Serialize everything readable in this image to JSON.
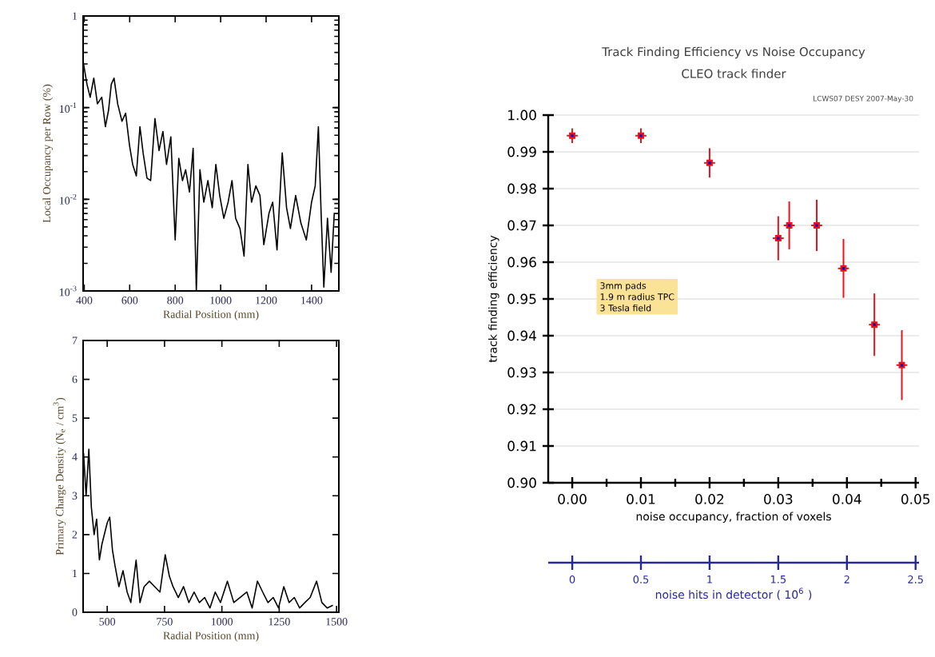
{
  "chart_data": [
    {
      "type": "line",
      "xlabel": "Radial Position (mm)",
      "ylabel": "Local Occupancy per Row (%)",
      "log": "y",
      "color": "#000000",
      "xlim": [
        395,
        1520
      ],
      "ylim": [
        0.001,
        1
      ],
      "xticks": [
        400,
        600,
        800,
        1000,
        1200,
        1400
      ],
      "yticks": [
        {
          "value": 0.001,
          "label": "10$^{-3}$"
        },
        {
          "value": 0.01,
          "label": "10$^{-2}$"
        },
        {
          "value": 0.1,
          "label": "10$^{-1}$"
        },
        1
      ],
      "x": [
        395,
        412,
        426,
        442,
        458,
        477,
        493,
        507,
        519,
        531,
        547,
        566,
        582,
        599,
        613,
        629,
        645,
        659,
        676,
        692,
        711,
        729,
        746,
        762,
        781,
        800,
        816,
        832,
        846,
        863,
        879,
        893,
        909,
        926,
        944,
        963,
        979,
        996,
        1014,
        1033,
        1050,
        1066,
        1085,
        1103,
        1120,
        1136,
        1155,
        1173,
        1190,
        1213,
        1229,
        1248,
        1271,
        1290,
        1307,
        1330,
        1353,
        1377,
        1400,
        1416,
        1430,
        1442,
        1454,
        1470,
        1486,
        1500
      ],
      "values": [
        0.32,
        0.18,
        0.13,
        0.21,
        0.11,
        0.13,
        0.062,
        0.094,
        0.18,
        0.21,
        0.11,
        0.071,
        0.087,
        0.039,
        0.024,
        0.018,
        0.062,
        0.032,
        0.017,
        0.016,
        0.076,
        0.034,
        0.055,
        0.024,
        0.048,
        0.0036,
        0.028,
        0.016,
        0.021,
        0.012,
        0.036,
        0.001,
        0.021,
        0.0093,
        0.016,
        0.0081,
        0.024,
        0.011,
        0.0062,
        0.0093,
        0.016,
        0.0062,
        0.0048,
        0.0024,
        0.024,
        0.0093,
        0.014,
        0.011,
        0.0032,
        0.0071,
        0.0093,
        0.0028,
        0.032,
        0.0081,
        0.0048,
        0.011,
        0.0055,
        0.0036,
        0.0093,
        0.014,
        0.062,
        0.0071,
        0.0011,
        0.0062,
        0.0016,
        0.0071
      ]
    },
    {
      "type": "line",
      "xlabel": "Radial Position (mm)",
      "ylabel": "Primary Charge Density (N$_{e}$ / cm$^{3}$)",
      "color": "#000000",
      "xlim": [
        395,
        1510
      ],
      "ylim": [
        0,
        7
      ],
      "xticks": [
        500,
        750,
        1000,
        1250,
        1500
      ],
      "yticks": [
        0,
        1,
        2,
        3,
        4,
        5,
        6,
        7
      ],
      "x": [
        397,
        408,
        420,
        431,
        443,
        454,
        466,
        477,
        500,
        511,
        523,
        534,
        551,
        569,
        587,
        603,
        626,
        643,
        661,
        684,
        707,
        730,
        753,
        771,
        787,
        810,
        833,
        856,
        879,
        902,
        925,
        948,
        971,
        994,
        1024,
        1052,
        1079,
        1109,
        1132,
        1155,
        1178,
        1201,
        1224,
        1247,
        1270,
        1293,
        1316,
        1339,
        1362,
        1385,
        1413,
        1436,
        1459,
        1484
      ],
      "values": [
        4.1,
        3.0,
        4.2,
        2.7,
        2.0,
        2.4,
        1.35,
        1.75,
        2.3,
        2.45,
        1.6,
        1.2,
        0.66,
        1.07,
        0.52,
        0.25,
        1.34,
        0.25,
        0.66,
        0.8,
        0.66,
        0.52,
        1.48,
        0.93,
        0.66,
        0.38,
        0.66,
        0.25,
        0.52,
        0.25,
        0.38,
        0.11,
        0.52,
        0.25,
        0.8,
        0.25,
        0.38,
        0.52,
        0.11,
        0.8,
        0.52,
        0.25,
        0.38,
        0.11,
        0.66,
        0.25,
        0.38,
        0.11,
        0.25,
        0.38,
        0.8,
        0.25,
        0.11,
        0.18
      ]
    },
    {
      "type": "scatter",
      "title": "Track Finding Efficiency vs Noise Occupancy",
      "subtitle": "CLEO track finder",
      "xlabel": "noise occupancy, fraction of voxels",
      "ylabel": "track finding efficiency",
      "x2label": "noise hits in detector ( 10$^{6}$ )",
      "annotations": [
        "LCWS07 DESY 2007-May-30",
        "3mm pads",
        "1.9 m radius TPC",
        "3 Tesla field"
      ],
      "color": "#e8141c",
      "grid": "y",
      "marker": "square",
      "xlim": [
        -0.0035,
        0.0505
      ],
      "ylim": [
        0.9,
        1.0
      ],
      "xticks": [
        {
          "value": 0,
          "label": "0.00"
        },
        0.01,
        0.02,
        0.03,
        0.04,
        0.05
      ],
      "yticks": [
        {
          "value": 0.9,
          "label": "0.90"
        },
        0.91,
        0.92,
        0.93,
        0.94,
        0.95,
        0.96,
        0.97,
        0.98,
        0.99,
        {
          "value": 1.0,
          "label": "1.00"
        }
      ],
      "x2lim": [
        -0.175,
        2.525
      ],
      "x2ticks": [
        {
          "value": 0,
          "label": "0"
        },
        {
          "value": 0.5,
          "label": "0.5"
        },
        {
          "value": 1,
          "label": "1"
        },
        {
          "value": 1.5,
          "label": "1.5"
        },
        {
          "value": 2,
          "label": "2"
        },
        {
          "value": 2.5,
          "label": "2.5"
        }
      ],
      "x": [
        0.0,
        0.01,
        0.02,
        0.03,
        0.0316,
        0.0356,
        0.0395,
        0.044,
        0.048
      ],
      "values": [
        0.9944,
        0.9944,
        0.987,
        0.9665,
        0.97,
        0.97,
        0.9583,
        0.943,
        0.932
      ],
      "errors": [
        0.002,
        0.002,
        0.004,
        0.006,
        0.0065,
        0.007,
        0.008,
        0.0085,
        0.0095
      ],
      "xerrors": [
        0.0008,
        0.0008,
        0.0008,
        0.0008,
        0.0008,
        0.0008,
        0.0008,
        0.0008,
        0.0008
      ]
    }
  ]
}
